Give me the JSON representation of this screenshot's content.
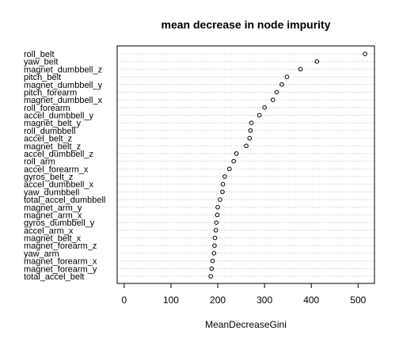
{
  "chart_data": {
    "type": "scatter",
    "title": "mean decrease in node impurity",
    "xlabel": "MeanDecreaseGini",
    "ylabel": "",
    "xlim": [
      -15,
      535
    ],
    "xticks": [
      0,
      100,
      200,
      300,
      400,
      500
    ],
    "grid": "horizontal dotted",
    "categories": [
      "roll_belt",
      "yaw_belt",
      "magnet_dumbbell_z",
      "pitch_belt",
      "magnet_dumbbell_y",
      "pitch_forearm",
      "magnet_dumbbell_x",
      "roll_forearm",
      "accel_dumbbell_y",
      "magnet_belt_y",
      "roll_dumbbell",
      "accel_belt_z",
      "magnet_belt_z",
      "accel_dumbbell_z",
      "roll_arm",
      "accel_forearm_x",
      "gyros_belt_z",
      "accel_dumbbell_x",
      "yaw_dumbbell",
      "total_accel_dumbbell",
      "magnet_arm_y",
      "magnet_arm_x",
      "gyros_dumbbell_y",
      "accel_arm_x",
      "magnet_belt_x",
      "magnet_forearm_z",
      "yaw_arm",
      "magnet_forearm_x",
      "magnet_forearm_y",
      "total_accel_belt"
    ],
    "values": [
      515,
      412,
      377,
      348,
      337,
      326,
      318,
      300,
      289,
      272,
      270,
      268,
      261,
      240,
      234,
      225,
      215,
      211,
      210,
      205,
      200,
      199,
      197,
      196,
      194,
      193,
      192,
      189,
      187,
      185
    ]
  }
}
